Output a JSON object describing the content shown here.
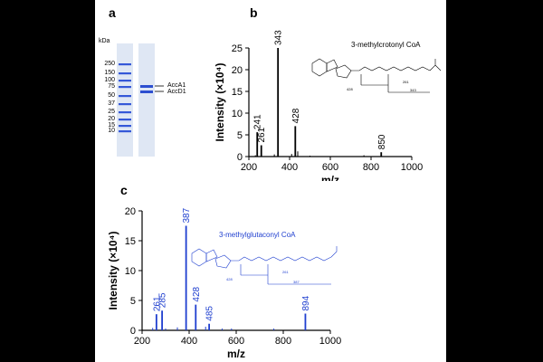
{
  "panels": {
    "a": {
      "letter": "a",
      "unit": "kDa",
      "markers": [
        "250",
        "150",
        "100",
        "75",
        "50",
        "37",
        "25",
        "20",
        "15",
        "10"
      ],
      "bands": [
        "AccA1",
        "AccD1"
      ]
    },
    "b": {
      "letter": "b",
      "compound_label": "3-methylcrotonyl CoA"
    },
    "c": {
      "letter": "c",
      "compound_label": "3-methylglutaconyl CoA"
    }
  },
  "structure_labels": {
    "b": [
      "428",
      "261",
      "343"
    ],
    "c": [
      "428",
      "261",
      "387"
    ]
  },
  "chart_data": [
    {
      "id": "b",
      "type": "bar",
      "title": "",
      "xlabel": "m/z",
      "ylabel": "Intensity (×10⁴)",
      "xlim": [
        200,
        1000
      ],
      "ylim": [
        0,
        25
      ],
      "xticks": [
        200,
        400,
        600,
        800,
        1000
      ],
      "yticks": [
        0,
        5,
        10,
        15,
        20,
        25
      ],
      "color": "#000000",
      "peaks": [
        {
          "mz": 241,
          "intensity": 5.6,
          "label": "241"
        },
        {
          "mz": 261,
          "intensity": 2.6,
          "label": "261"
        },
        {
          "mz": 343,
          "intensity": 25.0,
          "label": "343"
        },
        {
          "mz": 428,
          "intensity": 7.0,
          "label": "428"
        },
        {
          "mz": 850,
          "intensity": 1.0,
          "label": "850"
        },
        {
          "mz": 232,
          "intensity": 0.3,
          "label": ""
        },
        {
          "mz": 325,
          "intensity": 0.5,
          "label": ""
        },
        {
          "mz": 410,
          "intensity": 0.6,
          "label": ""
        },
        {
          "mz": 440,
          "intensity": 1.2,
          "label": ""
        },
        {
          "mz": 500,
          "intensity": 0.2,
          "label": ""
        },
        {
          "mz": 765,
          "intensity": 0.3,
          "label": ""
        }
      ]
    },
    {
      "id": "c",
      "type": "bar",
      "title": "",
      "xlabel": "m/z",
      "ylabel": "Intensity (×10⁴)",
      "xlim": [
        200,
        1000
      ],
      "ylim": [
        0,
        20
      ],
      "xticks": [
        200,
        400,
        600,
        800,
        1000
      ],
      "yticks": [
        0,
        5,
        10,
        15,
        20
      ],
      "color": "#1f3fcf",
      "peaks": [
        {
          "mz": 261,
          "intensity": 2.7,
          "label": "261"
        },
        {
          "mz": 285,
          "intensity": 3.3,
          "label": "285"
        },
        {
          "mz": 387,
          "intensity": 17.5,
          "label": "387"
        },
        {
          "mz": 428,
          "intensity": 4.3,
          "label": "428"
        },
        {
          "mz": 485,
          "intensity": 1.1,
          "label": "485"
        },
        {
          "mz": 894,
          "intensity": 2.8,
          "label": "894"
        },
        {
          "mz": 245,
          "intensity": 0.4,
          "label": ""
        },
        {
          "mz": 300,
          "intensity": 0.3,
          "label": ""
        },
        {
          "mz": 350,
          "intensity": 0.5,
          "label": ""
        },
        {
          "mz": 470,
          "intensity": 0.6,
          "label": ""
        },
        {
          "mz": 540,
          "intensity": 0.3,
          "label": ""
        },
        {
          "mz": 580,
          "intensity": 0.3,
          "label": ""
        },
        {
          "mz": 760,
          "intensity": 0.3,
          "label": ""
        }
      ]
    }
  ]
}
